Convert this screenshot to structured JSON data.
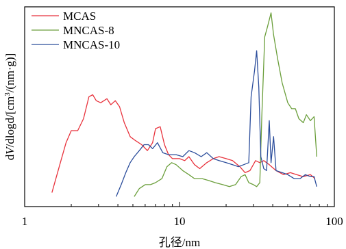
{
  "chart_data": {
    "type": "line",
    "xscale": "log",
    "xlim": [
      1,
      100
    ],
    "xticks": [
      1,
      10,
      100
    ],
    "xtick_labels": [
      "1",
      "10",
      "100"
    ],
    "xlabel": "孔径/nm",
    "ylabel_parts": [
      {
        "text": "d",
        "italic": false,
        "sup": false
      },
      {
        "text": "V",
        "italic": true,
        "sup": false
      },
      {
        "text": "/dlogd",
        "italic": false,
        "sup": false
      },
      {
        "text": "/[cm",
        "italic": false,
        "sup": false
      },
      {
        "text": "3",
        "italic": false,
        "sup": true
      },
      {
        "text": "/(nm·g)]",
        "italic": false,
        "sup": false
      }
    ],
    "ylim": [
      0,
      100
    ],
    "grid": false,
    "legend_position": "top-left",
    "series": [
      {
        "name": "MCAS",
        "color": "#e8323c",
        "points": [
          [
            1.5,
            7
          ],
          [
            1.7,
            22
          ],
          [
            1.85,
            32
          ],
          [
            2.0,
            38
          ],
          [
            2.2,
            38
          ],
          [
            2.4,
            44
          ],
          [
            2.6,
            55
          ],
          [
            2.75,
            56
          ],
          [
            2.9,
            53
          ],
          [
            3.1,
            52
          ],
          [
            3.4,
            54
          ],
          [
            3.6,
            51
          ],
          [
            3.85,
            53
          ],
          [
            4.1,
            50
          ],
          [
            4.4,
            42
          ],
          [
            4.8,
            35
          ],
          [
            5.2,
            33
          ],
          [
            5.7,
            31
          ],
          [
            6.2,
            28
          ],
          [
            6.7,
            32
          ],
          [
            7.0,
            39
          ],
          [
            7.5,
            40
          ],
          [
            8.0,
            31
          ],
          [
            8.5,
            26
          ],
          [
            9.0,
            24
          ],
          [
            9.5,
            24
          ],
          [
            10.0,
            24
          ],
          [
            10.8,
            23
          ],
          [
            11.5,
            25
          ],
          [
            12.5,
            21
          ],
          [
            13.5,
            19
          ],
          [
            15.0,
            22
          ],
          [
            16.5,
            24
          ],
          [
            18.0,
            25
          ],
          [
            20.0,
            24
          ],
          [
            22.0,
            23
          ],
          [
            24.5,
            20
          ],
          [
            26.5,
            17
          ],
          [
            28.5,
            18
          ],
          [
            31.0,
            23
          ],
          [
            33.0,
            22
          ],
          [
            35.0,
            23
          ],
          [
            38.0,
            21
          ],
          [
            42.0,
            18
          ],
          [
            47.0,
            16
          ],
          [
            52.0,
            17
          ],
          [
            57.0,
            16
          ],
          [
            63.0,
            15
          ],
          [
            70.0,
            16
          ],
          [
            75.0,
            14
          ]
        ]
      },
      {
        "name": "MNCAS-8",
        "color": "#6a9e3a",
        "points": [
          [
            5.1,
            5
          ],
          [
            5.5,
            9
          ],
          [
            6.0,
            11
          ],
          [
            6.5,
            11
          ],
          [
            7.0,
            12
          ],
          [
            7.7,
            14
          ],
          [
            8.3,
            20
          ],
          [
            8.9,
            22
          ],
          [
            9.5,
            21
          ],
          [
            10.5,
            18
          ],
          [
            11.5,
            16
          ],
          [
            12.5,
            14
          ],
          [
            14.0,
            14
          ],
          [
            15.5,
            13
          ],
          [
            17.0,
            12
          ],
          [
            19.0,
            11
          ],
          [
            21.0,
            10
          ],
          [
            23.0,
            11
          ],
          [
            25.0,
            15
          ],
          [
            26.5,
            16
          ],
          [
            28.0,
            12
          ],
          [
            30.0,
            11
          ],
          [
            31.5,
            10
          ],
          [
            33.0,
            12
          ],
          [
            34.0,
            45
          ],
          [
            35.5,
            85
          ],
          [
            37.0,
            90
          ],
          [
            39.0,
            97
          ],
          [
            40.5,
            86
          ],
          [
            43.0,
            74
          ],
          [
            46.0,
            62
          ],
          [
            50.0,
            52
          ],
          [
            53.0,
            49
          ],
          [
            56.0,
            49
          ],
          [
            59.0,
            44
          ],
          [
            63.0,
            42
          ],
          [
            66.0,
            46
          ],
          [
            70.0,
            43
          ],
          [
            74.0,
            45
          ],
          [
            77.0,
            25
          ]
        ]
      },
      {
        "name": "MNCAS-10",
        "color": "#2b4d9b",
        "points": [
          [
            3.9,
            5
          ],
          [
            4.2,
            11
          ],
          [
            4.5,
            17
          ],
          [
            4.8,
            22
          ],
          [
            5.1,
            25
          ],
          [
            5.5,
            28
          ],
          [
            5.9,
            31
          ],
          [
            6.3,
            31
          ],
          [
            6.7,
            29
          ],
          [
            7.2,
            32
          ],
          [
            7.8,
            27
          ],
          [
            8.5,
            26
          ],
          [
            9.5,
            26
          ],
          [
            10.5,
            25
          ],
          [
            11.5,
            28
          ],
          [
            12.5,
            27
          ],
          [
            13.8,
            25
          ],
          [
            15.0,
            27
          ],
          [
            16.5,
            24
          ],
          [
            18.0,
            23
          ],
          [
            20.0,
            22
          ],
          [
            22.0,
            21
          ],
          [
            24.0,
            20
          ],
          [
            26.0,
            21
          ],
          [
            28.0,
            22
          ],
          [
            29.0,
            55
          ],
          [
            30.5,
            68
          ],
          [
            31.5,
            78
          ],
          [
            32.5,
            60
          ],
          [
            33.5,
            25
          ],
          [
            35.0,
            19
          ],
          [
            36.5,
            18
          ],
          [
            38.0,
            43
          ],
          [
            39.0,
            22
          ],
          [
            40.5,
            35
          ],
          [
            42.0,
            18
          ],
          [
            46.0,
            17
          ],
          [
            50.0,
            16
          ],
          [
            55.0,
            14
          ],
          [
            60.0,
            14
          ],
          [
            65.0,
            16
          ],
          [
            70.0,
            15
          ],
          [
            74.0,
            15
          ],
          [
            77.0,
            10
          ]
        ]
      }
    ]
  }
}
